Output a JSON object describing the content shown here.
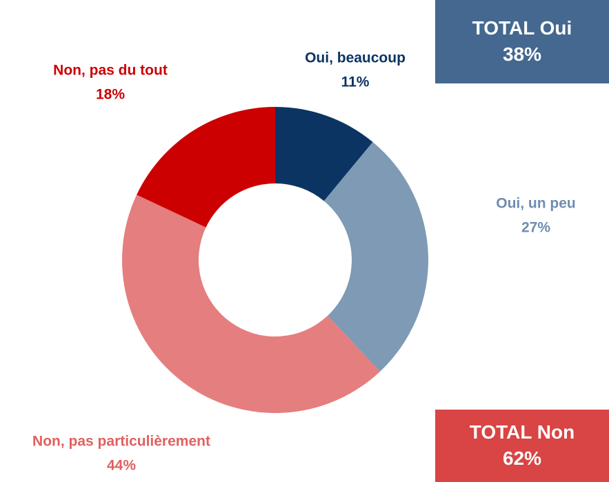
{
  "chart_data": {
    "type": "donut",
    "categories": [
      "Oui, beaucoup",
      "Oui, un peu",
      "Non, pas particulièrement",
      "Non, pas du tout"
    ],
    "values": [
      11,
      27,
      44,
      18
    ],
    "value_labels": [
      "11%",
      "27%",
      "44%",
      "18%"
    ],
    "colors": [
      "#0b3463",
      "#7f9ab5",
      "#e57e7e",
      "#cc0000"
    ],
    "totals": [
      {
        "label": "TOTAL Oui",
        "text": "38%",
        "color": "#44688f"
      },
      {
        "label": "TOTAL Non",
        "text": "62%",
        "color": "#d94444"
      }
    ]
  }
}
